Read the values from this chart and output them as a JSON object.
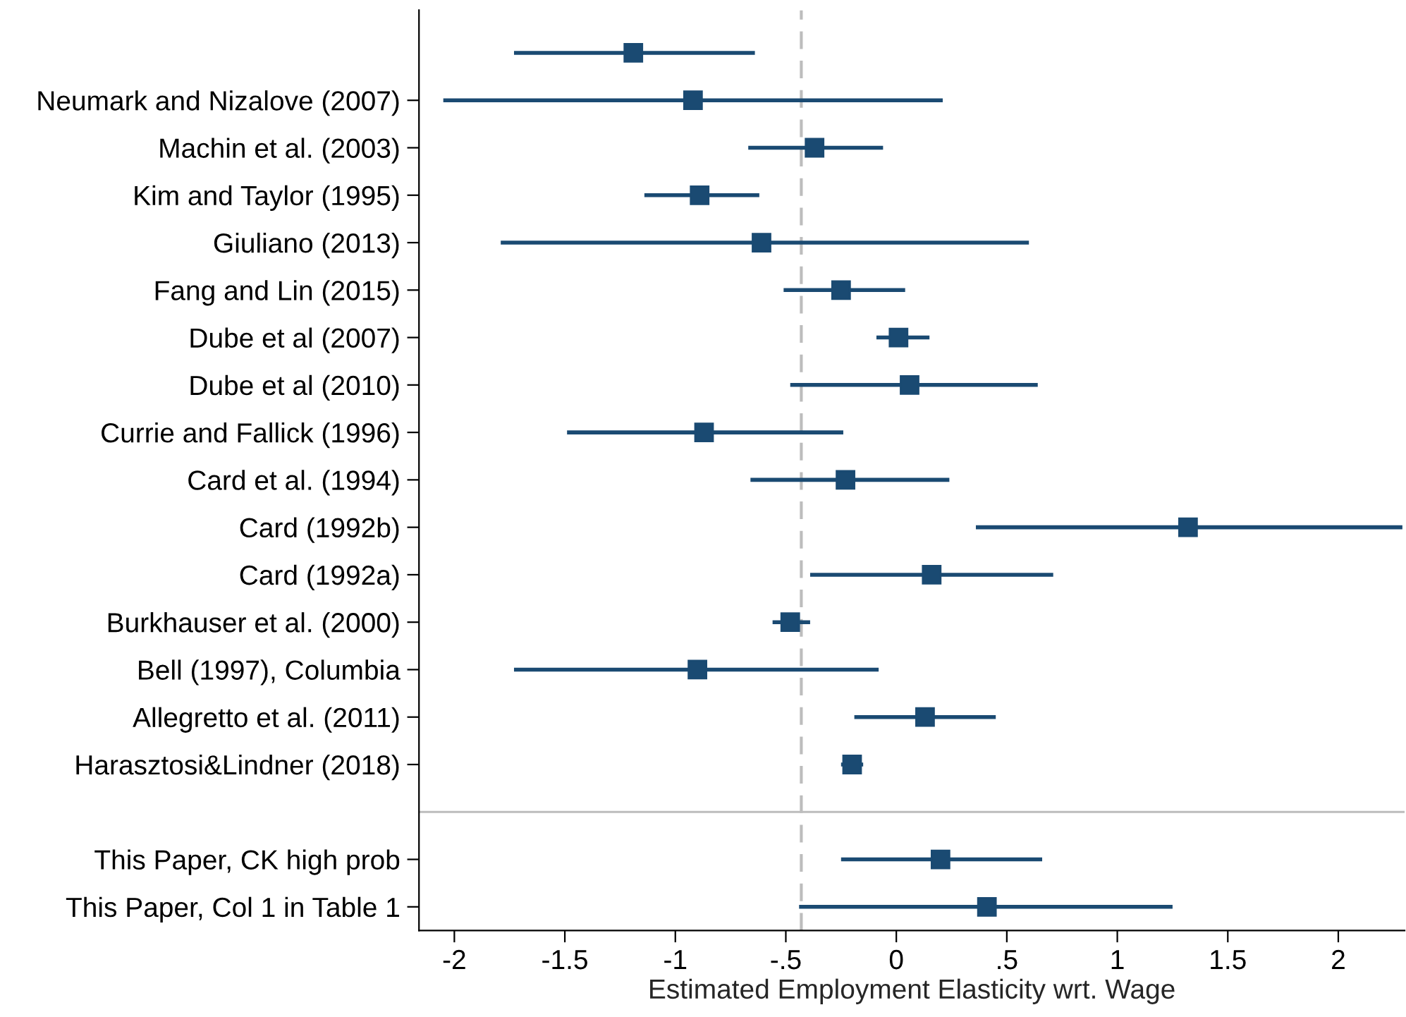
{
  "chart_data": {
    "type": "scatter",
    "orientation": "horizontal",
    "xlabel": "Estimated Employment Elasticity wrt. Wage",
    "categories": [
      null,
      "Neumark and Nizalove (2007)",
      "Machin et al. (2003)",
      "Kim and Taylor (1995)",
      "Giuliano (2013)",
      "Fang and Lin (2015)",
      "Dube et al (2007)",
      "Dube et al (2010)",
      "Currie and Fallick (1996)",
      "Card et al. (1994)",
      "Card (1992b)",
      "Card (1992a)",
      "Burkhauser et al. (2000)",
      "Bell (1997), Columbia",
      "Allegretto et al. (2011)",
      "Harasztosi&Lindner (2018)",
      null,
      "This Paper, CK high prob",
      "This Paper, Col 1 in Table 1"
    ],
    "values": [
      -1.19,
      -0.92,
      -0.37,
      -0.89,
      -0.61,
      -0.25,
      0.01,
      0.06,
      -0.87,
      -0.23,
      1.32,
      0.16,
      -0.48,
      -0.9,
      0.13,
      -0.2,
      null,
      0.2,
      0.41
    ],
    "errors": [
      [
        -1.73,
        -0.64
      ],
      [
        -2.05,
        0.21
      ],
      [
        -0.67,
        -0.06
      ],
      [
        -1.14,
        -0.62
      ],
      [
        -1.79,
        0.6
      ],
      [
        -0.51,
        0.04
      ],
      [
        -0.09,
        0.15
      ],
      [
        -0.48,
        0.64
      ],
      [
        -1.49,
        -0.24
      ],
      [
        -0.66,
        0.24
      ],
      [
        0.36,
        2.29
      ],
      [
        -0.39,
        0.71
      ],
      [
        -0.56,
        -0.39
      ],
      [
        -1.73,
        -0.08
      ],
      [
        -0.19,
        0.45
      ],
      [
        -0.25,
        -0.15
      ],
      null,
      [
        -0.25,
        0.66
      ],
      [
        -0.44,
        1.25
      ]
    ],
    "color": "#1a4a72",
    "marker": "square",
    "xlim": [
      -2.16,
      2.3
    ],
    "xticks": [
      -2,
      -1.5,
      -1,
      {
        "value": -0.5,
        "label": "-.5"
      },
      0,
      {
        "value": 0.5,
        "label": ".5"
      },
      1,
      1.5,
      2
    ],
    "ref_lines": [
      {
        "axis": "x",
        "value": -0.43,
        "color": "#bdbdbd",
        "line_style": "dashed"
      }
    ]
  }
}
